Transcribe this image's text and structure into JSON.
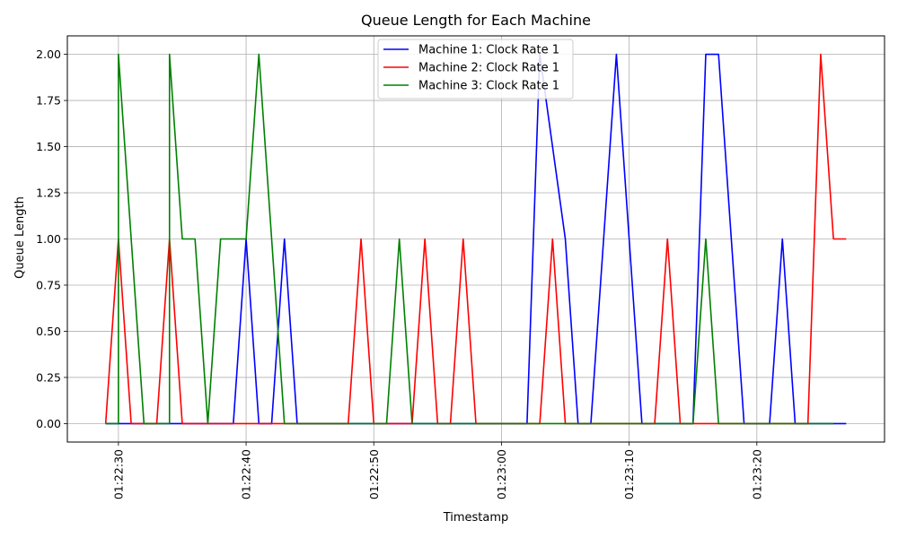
{
  "chart_data": {
    "type": "line",
    "title": "Queue Length for Each Machine",
    "xlabel": "Timestamp",
    "ylabel": "Queue Length",
    "x_type": "time",
    "x_range": [
      "01:22:26",
      "01:23:30"
    ],
    "ylim": [
      -0.1,
      2.1
    ],
    "x_ticks": [
      "01:22:30",
      "01:22:40",
      "01:22:50",
      "01:23:00",
      "01:23:10",
      "01:23:20"
    ],
    "y_ticks": [
      "0.00",
      "0.25",
      "0.50",
      "0.75",
      "1.00",
      "1.25",
      "1.50",
      "1.75",
      "2.00"
    ],
    "grid": true,
    "legend_position": "top-center",
    "series": [
      {
        "name": "Machine 1: Clock Rate 1",
        "color": "#0000ff",
        "points": [
          [
            "01:22:29",
            0
          ],
          [
            "01:22:30",
            0
          ],
          [
            "01:22:34",
            0
          ],
          [
            "01:22:39",
            0
          ],
          [
            "01:22:40",
            1
          ],
          [
            "01:22:41",
            0
          ],
          [
            "01:22:42",
            0
          ],
          [
            "01:22:43",
            1
          ],
          [
            "01:22:44",
            0
          ],
          [
            "01:23:02",
            0
          ],
          [
            "01:23:03",
            2
          ],
          [
            "01:23:05",
            1
          ],
          [
            "01:23:06",
            0
          ],
          [
            "01:23:07",
            0
          ],
          [
            "01:23:09",
            2
          ],
          [
            "01:23:11",
            0
          ],
          [
            "01:23:15",
            0
          ],
          [
            "01:23:16",
            2
          ],
          [
            "01:23:17",
            2
          ],
          [
            "01:23:19",
            0
          ],
          [
            "01:23:21",
            0
          ],
          [
            "01:23:22",
            1
          ],
          [
            "01:23:23",
            0
          ],
          [
            "01:23:27",
            0
          ]
        ]
      },
      {
        "name": "Machine 2: Clock Rate 1",
        "color": "#ff0000",
        "points": [
          [
            "01:22:29",
            0
          ],
          [
            "01:22:30",
            1
          ],
          [
            "01:22:31",
            0
          ],
          [
            "01:22:33",
            0
          ],
          [
            "01:22:34",
            1
          ],
          [
            "01:22:35",
            0
          ],
          [
            "01:22:48",
            0
          ],
          [
            "01:22:49",
            1
          ],
          [
            "01:22:50",
            0
          ],
          [
            "01:22:53",
            0
          ],
          [
            "01:22:54",
            1
          ],
          [
            "01:22:55",
            0
          ],
          [
            "01:22:56",
            0
          ],
          [
            "01:22:57",
            1
          ],
          [
            "01:22:58",
            0
          ],
          [
            "01:23:03",
            0
          ],
          [
            "01:23:04",
            1
          ],
          [
            "01:23:05",
            0
          ],
          [
            "01:23:12",
            0
          ],
          [
            "01:23:13",
            1
          ],
          [
            "01:23:14",
            0
          ],
          [
            "01:23:24",
            0
          ],
          [
            "01:23:25",
            2
          ],
          [
            "01:23:26",
            1
          ],
          [
            "01:23:27",
            1
          ]
        ]
      },
      {
        "name": "Machine 3: Clock Rate 1",
        "color": "#008000",
        "points": [
          [
            "01:22:29",
            0
          ],
          [
            "01:22:30",
            0
          ],
          [
            "01:22:30",
            2
          ],
          [
            "01:22:32",
            0
          ],
          [
            "01:22:34",
            0
          ],
          [
            "01:22:34",
            2
          ],
          [
            "01:22:35",
            1
          ],
          [
            "01:22:36",
            1
          ],
          [
            "01:22:37",
            0
          ],
          [
            "01:22:38",
            1
          ],
          [
            "01:22:40",
            1
          ],
          [
            "01:22:41",
            2
          ],
          [
            "01:22:43",
            0
          ],
          [
            "01:22:51",
            0
          ],
          [
            "01:22:52",
            1
          ],
          [
            "01:22:53",
            0
          ],
          [
            "01:23:15",
            0
          ],
          [
            "01:23:16",
            1
          ],
          [
            "01:23:17",
            0
          ],
          [
            "01:23:26",
            0
          ]
        ]
      }
    ]
  }
}
